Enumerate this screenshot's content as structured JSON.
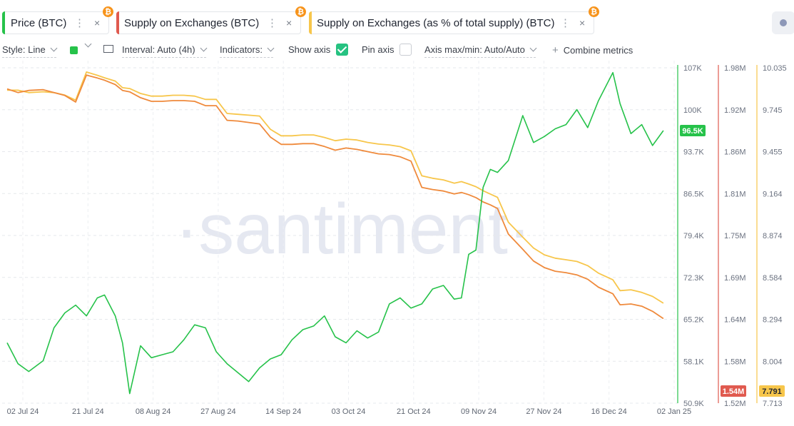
{
  "tabs": [
    {
      "label": "Price (BTC)",
      "color": "#26c24a"
    },
    {
      "label": "Supply on Exchanges (BTC)",
      "color": "#e05a4f"
    },
    {
      "label": "Supply on Exchanges (as % of total supply) (BTC)",
      "color": "#f7c64b"
    }
  ],
  "coin_glyph": "₿",
  "menu_glyph": "⋮",
  "close_glyph": "×",
  "toolbar": {
    "style": "Style: Line",
    "interval": "Interval: Auto (4h)",
    "indicators": "Indicators:",
    "show_axis": "Show axis",
    "pin_axis": "Pin axis",
    "axis_maxmin": "Axis max/min: Auto/Auto",
    "combine_plus": "+",
    "combine": "Combine metrics"
  },
  "watermark": "·santiment·",
  "chart_data": {
    "type": "line",
    "x_tick_labels": [
      "02 Jul 24",
      "21 Jul 24",
      "08 Aug 24",
      "27 Aug 24",
      "14 Sep 24",
      "03 Oct 24",
      "21 Oct 24",
      "09 Nov 24",
      "27 Nov 24",
      "16 Dec 24",
      "02 Jan 25"
    ],
    "axes": [
      {
        "id": "price",
        "color": "#26c24a",
        "ticks": [
          "107K",
          "100K",
          "93.7K",
          "86.5K",
          "79.4K",
          "72.3K",
          "65.2K",
          "58.1K",
          "50.9K"
        ],
        "ylim": [
          50900,
          107000
        ]
      },
      {
        "id": "supply",
        "color": "#e05a4f",
        "ticks": [
          "1.98M",
          "1.92M",
          "1.86M",
          "1.81M",
          "1.75M",
          "1.69M",
          "1.64M",
          "1.58M",
          "1.52M"
        ],
        "ylim": [
          1520000,
          1980000
        ]
      },
      {
        "id": "pct",
        "color": "#f7c64b",
        "ticks": [
          "10.035",
          "9.745",
          "9.455",
          "9.164",
          "8.874",
          "8.584",
          "8.294",
          "8.004",
          "7.713"
        ],
        "ylim": [
          7.713,
          10.035
        ]
      }
    ],
    "current_labels": {
      "price": "96.5K",
      "supply": "1.54M",
      "pct": "7.791"
    },
    "series": [
      {
        "name": "Price (BTC)",
        "axis": "price",
        "color": "#26c24a",
        "x": [
          "2024-07-02",
          "2024-07-05",
          "2024-07-08",
          "2024-07-12",
          "2024-07-15",
          "2024-07-18",
          "2024-07-21",
          "2024-07-24",
          "2024-07-27",
          "2024-07-29",
          "2024-08-01",
          "2024-08-03",
          "2024-08-05",
          "2024-08-08",
          "2024-08-11",
          "2024-08-14",
          "2024-08-17",
          "2024-08-20",
          "2024-08-23",
          "2024-08-26",
          "2024-08-29",
          "2024-09-01",
          "2024-09-04",
          "2024-09-07",
          "2024-09-10",
          "2024-09-13",
          "2024-09-16",
          "2024-09-19",
          "2024-09-22",
          "2024-09-25",
          "2024-09-28",
          "2024-10-01",
          "2024-10-04",
          "2024-10-07",
          "2024-10-10",
          "2024-10-13",
          "2024-10-16",
          "2024-10-19",
          "2024-10-22",
          "2024-10-25",
          "2024-10-28",
          "2024-10-31",
          "2024-11-03",
          "2024-11-05",
          "2024-11-07",
          "2024-11-09",
          "2024-11-11",
          "2024-11-13",
          "2024-11-15",
          "2024-11-18",
          "2024-11-22",
          "2024-11-25",
          "2024-11-28",
          "2024-12-01",
          "2024-12-04",
          "2024-12-07",
          "2024-12-10",
          "2024-12-13",
          "2024-12-17",
          "2024-12-19",
          "2024-12-22",
          "2024-12-25",
          "2024-12-28",
          "2024-12-31"
        ],
        "values": [
          61000,
          57500,
          56200,
          58000,
          63500,
          66000,
          67300,
          65500,
          68500,
          69000,
          65500,
          61000,
          52500,
          60500,
          58500,
          59000,
          59500,
          61500,
          64000,
          63500,
          59500,
          57500,
          56000,
          54500,
          56800,
          58300,
          59000,
          61500,
          63200,
          63800,
          65500,
          62000,
          61000,
          63000,
          61800,
          62800,
          67500,
          68500,
          66800,
          67500,
          70000,
          70600,
          68300,
          68500,
          75800,
          76500,
          87000,
          90000,
          89500,
          91500,
          99000,
          94500,
          95500,
          96800,
          97500,
          100000,
          97000,
          101500,
          106200,
          101000,
          96000,
          97500,
          94000,
          96500
        ]
      },
      {
        "name": "Supply on Exchanges (BTC)",
        "axis": "supply",
        "color": "#e05a4f",
        "x": [
          "2024-07-02",
          "2024-07-05",
          "2024-07-08",
          "2024-07-12",
          "2024-07-15",
          "2024-07-18",
          "2024-07-21",
          "2024-07-24",
          "2024-07-27",
          "2024-07-29",
          "2024-08-01",
          "2024-08-03",
          "2024-08-05",
          "2024-08-08",
          "2024-08-11",
          "2024-08-14",
          "2024-08-17",
          "2024-08-20",
          "2024-08-23",
          "2024-08-26",
          "2024-08-29",
          "2024-09-01",
          "2024-09-04",
          "2024-09-07",
          "2024-09-10",
          "2024-09-13",
          "2024-09-16",
          "2024-09-19",
          "2024-09-22",
          "2024-09-25",
          "2024-09-28",
          "2024-10-01",
          "2024-10-04",
          "2024-10-07",
          "2024-10-10",
          "2024-10-13",
          "2024-10-16",
          "2024-10-19",
          "2024-10-22",
          "2024-10-25",
          "2024-10-28",
          "2024-10-31",
          "2024-11-03",
          "2024-11-05",
          "2024-11-07",
          "2024-11-09",
          "2024-11-11",
          "2024-11-13",
          "2024-11-15",
          "2024-11-18",
          "2024-11-22",
          "2024-11-25",
          "2024-11-28",
          "2024-12-01",
          "2024-12-04",
          "2024-12-07",
          "2024-12-10",
          "2024-12-13",
          "2024-12-17",
          "2024-12-19",
          "2024-12-22",
          "2024-12-25",
          "2024-12-28",
          "2024-12-31"
        ],
        "values": [
          1951000,
          1946000,
          1949000,
          1950000,
          1946000,
          1942000,
          1933000,
          1970000,
          1966000,
          1963000,
          1957000,
          1949000,
          1947000,
          1939000,
          1934000,
          1934000,
          1935000,
          1935000,
          1934000,
          1928000,
          1928000,
          1908000,
          1907000,
          1905000,
          1903000,
          1885000,
          1875000,
          1875000,
          1876000,
          1876000,
          1872000,
          1867000,
          1870000,
          1868000,
          1865000,
          1862000,
          1861000,
          1858000,
          1852000,
          1816000,
          1813000,
          1811000,
          1807000,
          1809000,
          1806000,
          1802000,
          1796000,
          1792000,
          1787000,
          1752000,
          1731000,
          1715000,
          1706000,
          1701000,
          1699000,
          1696000,
          1690000,
          1679000,
          1670000,
          1655000,
          1656000,
          1653000,
          1646000,
          1636000
        ]
      },
      {
        "name": "Supply on Exchanges (as % of total supply) (BTC)",
        "axis": "pct",
        "color": "#f7c64b",
        "x": [
          "2024-07-02",
          "2024-07-05",
          "2024-07-08",
          "2024-07-12",
          "2024-07-15",
          "2024-07-18",
          "2024-07-21",
          "2024-07-24",
          "2024-07-27",
          "2024-07-29",
          "2024-08-01",
          "2024-08-03",
          "2024-08-05",
          "2024-08-08",
          "2024-08-11",
          "2024-08-14",
          "2024-08-17",
          "2024-08-20",
          "2024-08-23",
          "2024-08-26",
          "2024-08-29",
          "2024-09-01",
          "2024-09-04",
          "2024-09-07",
          "2024-09-10",
          "2024-09-13",
          "2024-09-16",
          "2024-09-19",
          "2024-09-22",
          "2024-09-25",
          "2024-09-28",
          "2024-10-01",
          "2024-10-04",
          "2024-10-07",
          "2024-10-10",
          "2024-10-13",
          "2024-10-16",
          "2024-10-19",
          "2024-10-22",
          "2024-10-25",
          "2024-10-28",
          "2024-10-31",
          "2024-11-03",
          "2024-11-05",
          "2024-11-07",
          "2024-11-09",
          "2024-11-11",
          "2024-11-13",
          "2024-11-15",
          "2024-11-18",
          "2024-11-22",
          "2024-11-25",
          "2024-11-28",
          "2024-12-01",
          "2024-12-04",
          "2024-12-07",
          "2024-12-10",
          "2024-12-13",
          "2024-12-17",
          "2024-12-19",
          "2024-12-22",
          "2024-12-25",
          "2024-12-28",
          "2024-12-31"
        ],
        "values": [
          9.88,
          9.88,
          9.863,
          9.869,
          9.863,
          9.846,
          9.811,
          10.006,
          9.983,
          9.966,
          9.943,
          9.897,
          9.891,
          9.857,
          9.839,
          9.839,
          9.845,
          9.845,
          9.839,
          9.816,
          9.816,
          9.719,
          9.713,
          9.707,
          9.701,
          9.609,
          9.564,
          9.564,
          9.57,
          9.57,
          9.553,
          9.53,
          9.541,
          9.535,
          9.518,
          9.507,
          9.501,
          9.489,
          9.46,
          9.287,
          9.27,
          9.259,
          9.236,
          9.247,
          9.23,
          9.212,
          9.184,
          9.161,
          9.138,
          8.966,
          8.862,
          8.787,
          8.74,
          8.717,
          8.706,
          8.694,
          8.665,
          8.613,
          8.567,
          8.492,
          8.498,
          8.48,
          8.452,
          8.405
        ]
      }
    ]
  }
}
